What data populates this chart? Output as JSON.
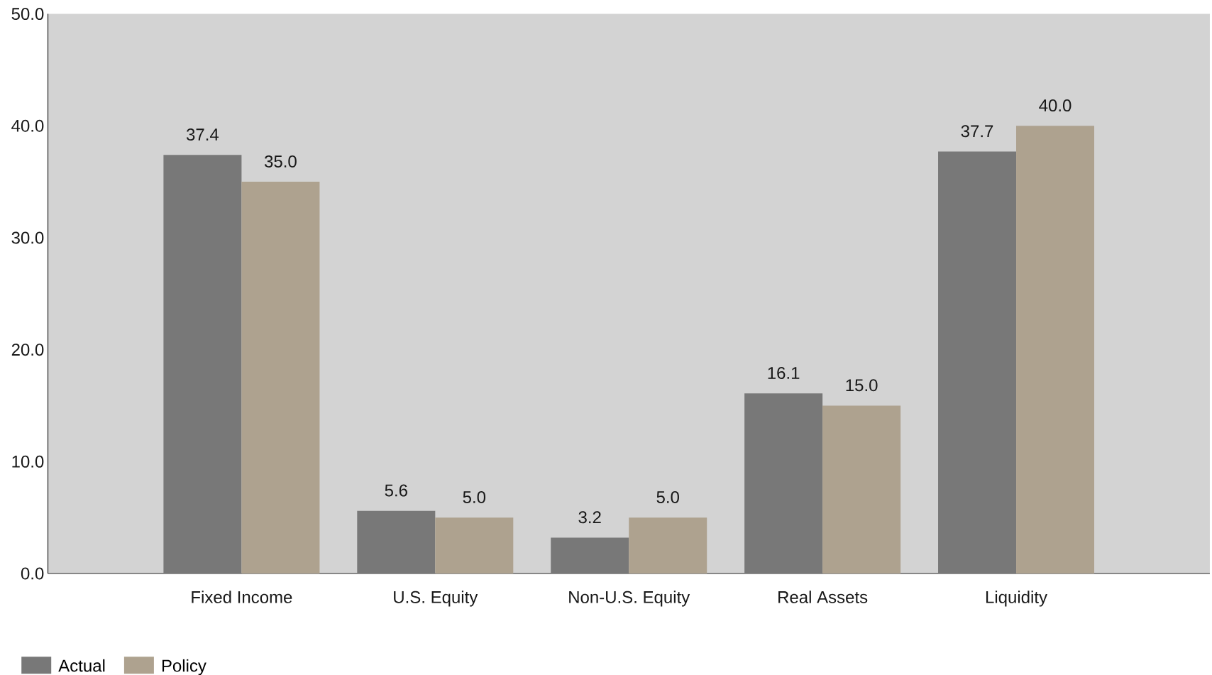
{
  "chart_data": {
    "type": "bar",
    "categories": [
      "Fixed Income",
      "U.S. Equity",
      "Non-U.S. Equity",
      "Real Assets",
      "Liquidity"
    ],
    "series": [
      {
        "name": "Actual",
        "color": "#787878",
        "values": [
          37.4,
          5.6,
          3.2,
          16.1,
          37.7
        ],
        "value_labels": [
          "37.4",
          "5.6",
          "3.2",
          "16.1",
          "37.7"
        ]
      },
      {
        "name": "Policy",
        "color": "#aea28f",
        "values": [
          35.0,
          5.0,
          5.0,
          15.0,
          40.0
        ],
        "value_labels": [
          "35.0",
          "5.0",
          "5.0",
          "15.0",
          "40.0"
        ]
      }
    ],
    "ylim": [
      0,
      50
    ],
    "yticks": [
      {
        "value": 0,
        "label": "0.0"
      },
      {
        "value": 10,
        "label": "10.0"
      },
      {
        "value": 20,
        "label": "20.0"
      },
      {
        "value": 30,
        "label": "30.0"
      },
      {
        "value": 40,
        "label": "40.0"
      },
      {
        "value": 50,
        "label": "50.0"
      }
    ],
    "legend": "bottom left"
  }
}
